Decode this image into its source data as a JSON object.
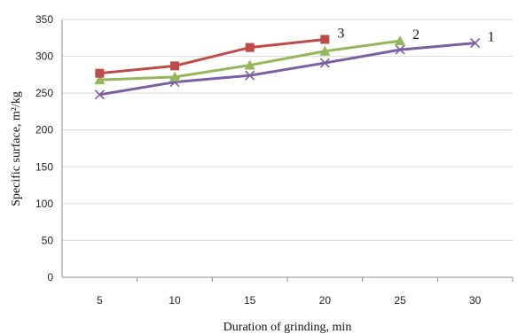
{
  "chart_data": {
    "type": "line",
    "xlabel": "Duration of grinding, min",
    "ylabel": "Specific surface, m²/kg",
    "categories": [
      5,
      10,
      15,
      20,
      25,
      30
    ],
    "ylim": [
      0,
      350
    ],
    "yticks": [
      0,
      50,
      100,
      150,
      200,
      250,
      300,
      350
    ],
    "grid": true,
    "series": [
      {
        "label": "1",
        "marker": "x",
        "color": "#7b5ea1",
        "x": [
          5,
          10,
          15,
          20,
          25,
          30
        ],
        "values": [
          248,
          265,
          274,
          291,
          309,
          318
        ]
      },
      {
        "label": "2",
        "marker": "triangle",
        "color": "#93b75a",
        "x": [
          5,
          10,
          15,
          20,
          25
        ],
        "values": [
          268,
          272,
          288,
          307,
          321
        ]
      },
      {
        "label": "3",
        "marker": "square",
        "color": "#be4b48",
        "x": [
          5,
          10,
          15,
          20
        ],
        "values": [
          277,
          287,
          312,
          323
        ]
      }
    ]
  }
}
